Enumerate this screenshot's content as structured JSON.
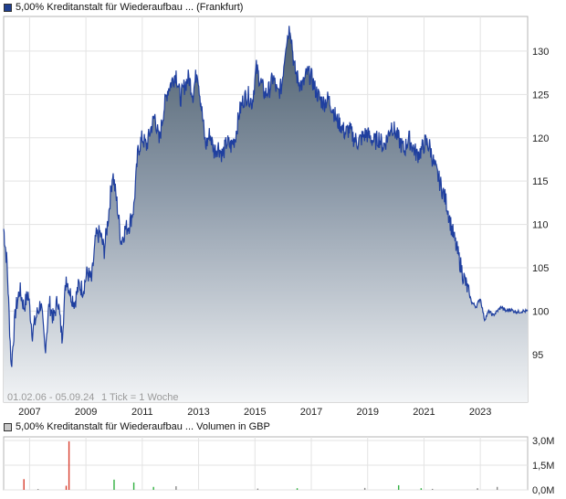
{
  "chart_data": [
    {
      "type": "area",
      "legend": "5,00% Kreditanstalt für Wiederaufbau ... (Frankfurt)",
      "legend_color": "#1f3f8f",
      "range_label": "01.02.06 - 05.09.24",
      "tick_label": "1 Tick = 1 Woche",
      "grid": true,
      "x_ticks": [
        "2007",
        "2009",
        "2011",
        "2013",
        "2015",
        "2017",
        "2019",
        "2021",
        "2023"
      ],
      "y_ticks": [
        95,
        100,
        105,
        110,
        115,
        120,
        125,
        130
      ],
      "ylim": [
        89.5,
        134
      ],
      "xlim": [
        2006.08,
        2024.68
      ],
      "series": [
        {
          "x": [
            2006.08,
            2006.2,
            2006.35,
            2006.5,
            2006.65,
            2006.8,
            2006.95,
            2007.1,
            2007.25,
            2007.4,
            2007.55,
            2007.7,
            2007.85,
            2008.0,
            2008.15,
            2008.3,
            2008.45,
            2008.6,
            2008.75,
            2008.9,
            2009.05,
            2009.2,
            2009.35,
            2009.5,
            2009.65,
            2009.8,
            2009.95,
            2010.1,
            2010.25,
            2010.4,
            2010.55,
            2010.7,
            2010.85,
            2011.0,
            2011.15,
            2011.3,
            2011.45,
            2011.6,
            2011.75,
            2011.9,
            2012.05,
            2012.2,
            2012.35,
            2012.5,
            2012.65,
            2012.8,
            2012.95,
            2013.1,
            2013.25,
            2013.4,
            2013.55,
            2013.7,
            2013.85,
            2014.0,
            2014.15,
            2014.3,
            2014.45,
            2014.6,
            2014.75,
            2014.9,
            2015.05,
            2015.2,
            2015.35,
            2015.5,
            2015.65,
            2015.8,
            2015.95,
            2016.1,
            2016.25,
            2016.4,
            2016.55,
            2016.7,
            2016.85,
            2017.0,
            2017.15,
            2017.3,
            2017.45,
            2017.6,
            2017.75,
            2017.9,
            2018.05,
            2018.2,
            2018.35,
            2018.5,
            2018.65,
            2018.8,
            2018.95,
            2019.1,
            2019.25,
            2019.4,
            2019.55,
            2019.7,
            2019.85,
            2020.0,
            2020.15,
            2020.3,
            2020.45,
            2020.6,
            2020.75,
            2020.9,
            2021.05,
            2021.2,
            2021.35,
            2021.5,
            2021.65,
            2021.8,
            2021.95,
            2022.1,
            2022.25,
            2022.4,
            2022.55,
            2022.7,
            2022.85,
            2023.0,
            2023.15,
            2023.3,
            2023.45,
            2023.6,
            2023.75,
            2023.9,
            2024.05,
            2024.2,
            2024.35,
            2024.5,
            2024.68
          ],
          "y": [
            109.5,
            105.5,
            93.5,
            100.0,
            102.5,
            100.5,
            102.0,
            97.5,
            99.5,
            101.0,
            95.5,
            101.0,
            99.0,
            101.5,
            97.0,
            104.0,
            102.0,
            101.0,
            103.0,
            102.5,
            104.5,
            103.5,
            108.5,
            109.0,
            107.0,
            111.0,
            116.0,
            112.5,
            108.0,
            109.5,
            110.0,
            112.0,
            118.5,
            120.0,
            119.0,
            121.0,
            122.5,
            119.5,
            123.0,
            125.5,
            126.5,
            127.5,
            124.5,
            126.0,
            127.0,
            125.0,
            128.0,
            123.5,
            119.0,
            120.5,
            118.5,
            119.0,
            118.0,
            119.5,
            119.0,
            120.0,
            123.0,
            124.5,
            125.0,
            124.0,
            128.0,
            126.5,
            125.0,
            125.5,
            127.0,
            125.0,
            126.0,
            131.0,
            133.0,
            128.0,
            126.5,
            126.0,
            127.5,
            127.0,
            125.5,
            124.5,
            124.0,
            124.5,
            123.5,
            122.0,
            121.5,
            120.5,
            121.0,
            120.0,
            119.5,
            120.0,
            120.5,
            120.0,
            119.5,
            120.0,
            119.0,
            120.0,
            121.5,
            120.5,
            119.5,
            118.5,
            120.0,
            119.0,
            118.0,
            118.5,
            119.5,
            119.0,
            117.0,
            115.5,
            114.0,
            112.5,
            110.0,
            108.0,
            106.0,
            104.0,
            102.5,
            101.0,
            100.5,
            101.5,
            99.0,
            100.0,
            99.5,
            100.0,
            100.5,
            100.0,
            100.2,
            100.0,
            99.9,
            100.0,
            100.0
          ]
        }
      ]
    },
    {
      "type": "bar",
      "legend": "5,00% Kreditanstalt für Wiederaufbau ... Volumen in GBP",
      "legend_color": "#c8c8c8",
      "y_ticks": [
        "0,0M",
        "1,5M",
        "3,0M"
      ],
      "ylim": [
        0,
        3.0
      ],
      "x": [
        2006.8,
        2007.3,
        2008.3,
        2008.4,
        2010.0,
        2010.7,
        2011.4,
        2012.2,
        2015.1,
        2016.5,
        2018.9,
        2020.1,
        2020.9,
        2021.3,
        2022.9,
        2023.6
      ],
      "values": [
        0.65,
        0.05,
        0.25,
        2.95,
        0.62,
        0.45,
        0.18,
        0.22,
        0.08,
        0.1,
        0.12,
        0.28,
        0.1,
        0.06,
        0.1,
        0.18
      ],
      "colors": [
        "#d94030",
        "#888888",
        "#d94030",
        "#d94030",
        "#30b040",
        "#30b040",
        "#30b040",
        "#888888",
        "#888888",
        "#30b040",
        "#888888",
        "#30b040",
        "#30b040",
        "#888888",
        "#888888",
        "#888888"
      ]
    }
  ]
}
